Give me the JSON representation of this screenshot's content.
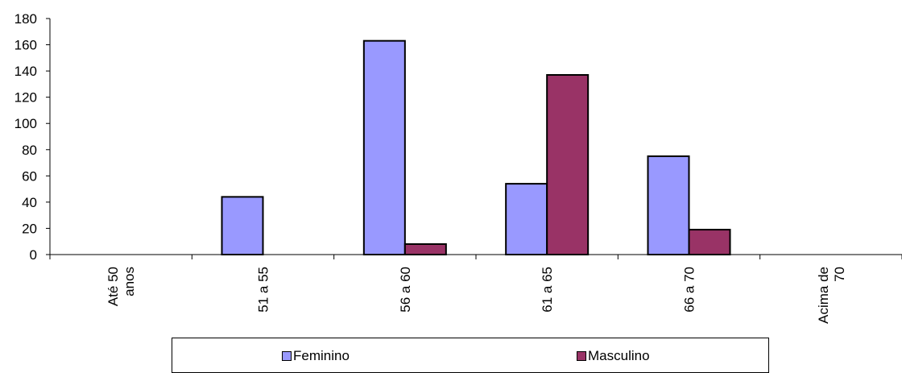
{
  "chart_data": {
    "type": "bar",
    "categories": [
      "Até 50 anos",
      "51 a  55",
      "56 a 60",
      "61 a 65",
      "66 a 70",
      "Acima de 70"
    ],
    "category_lines": [
      [
        "Até 50",
        "anos"
      ],
      [
        "51 a  55"
      ],
      [
        "56 a 60"
      ],
      [
        "61 a 65"
      ],
      [
        "66 a 70"
      ],
      [
        "Acima de",
        "70"
      ]
    ],
    "series": [
      {
        "name": "Feminino",
        "values": [
          0,
          44,
          163,
          54,
          75,
          0
        ],
        "color": "#9999ff"
      },
      {
        "name": "Masculino",
        "values": [
          0,
          0,
          8,
          137,
          19,
          0
        ],
        "color": "#993366"
      }
    ],
    "ylim": [
      0,
      180
    ],
    "yticks": [
      0,
      20,
      40,
      60,
      80,
      100,
      120,
      140,
      160,
      180
    ],
    "title": "",
    "xlabel": "",
    "ylabel": "",
    "grid": false,
    "legend_position": "bottom"
  },
  "legend": {
    "feminino_label": "Feminino",
    "masculino_label": "Masculino",
    "feminino_color": "#9999ff",
    "masculino_color": "#993366"
  }
}
